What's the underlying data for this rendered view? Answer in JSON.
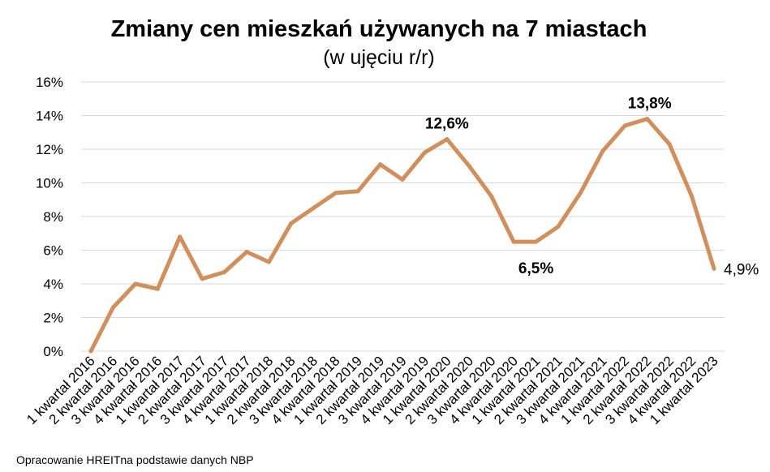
{
  "chart_data": {
    "type": "line",
    "title": "Zmiany cen mieszkań używanych na 7 miastach",
    "subtitle": "(w ujęciu r/r)",
    "xlabel": "",
    "ylabel": "",
    "ylim": [
      0,
      16
    ],
    "yticks": [
      "0%",
      "2%",
      "4%",
      "6%",
      "8%",
      "10%",
      "12%",
      "14%",
      "16%"
    ],
    "ytick_values": [
      0,
      2,
      4,
      6,
      8,
      10,
      12,
      14,
      16
    ],
    "grid": true,
    "line_color": "#d08f5c",
    "categories": [
      "1 kwartał 2016",
      "2 kwartał 2016",
      "3 kwartał 2016",
      "4 kwartał 2016",
      "1 kwartał 2017",
      "2 kwartał 2017",
      "3 kwartał 2017",
      "4 kwartał 2017",
      "1 kwartał 2018",
      "2 kwartał 2018",
      "3 kwartał 2018",
      "4 kwartał 2018",
      "1 kwartał 2019",
      "2 kwartał 2019",
      "3 kwartał 2019",
      "4 kwartał 2019",
      "1 kwartał 2020",
      "2 kwartał 2020",
      "3 kwartał 2020",
      "4 kwartał 2020",
      "1 kwartał 2021",
      "2 kwartał 2021",
      "3 kwartał 2021",
      "4 kwartał 2021",
      "1 kwartał 2022",
      "2 kwartał 2022",
      "3 kwartał 2022",
      "4 kwartał 2022",
      "1 kwartał 2023"
    ],
    "series": [
      {
        "values": [
          0.0,
          2.6,
          4.0,
          3.7,
          6.8,
          4.3,
          4.7,
          5.9,
          5.3,
          7.6,
          8.5,
          9.4,
          9.5,
          11.1,
          10.2,
          11.8,
          12.6,
          11.0,
          9.2,
          6.5,
          6.5,
          7.4,
          9.4,
          11.9,
          13.4,
          13.8,
          12.3,
          9.2,
          4.9
        ]
      }
    ],
    "annotations": [
      {
        "text": "12,6%",
        "index": 16,
        "bold": true
      },
      {
        "text": "6,5%",
        "index": 20,
        "bold": true
      },
      {
        "text": "13,8%",
        "index": 25,
        "bold": true
      },
      {
        "text": "4,9%",
        "index": 28,
        "bold": false
      }
    ]
  },
  "source_note": "Opracowanie HREITna podstawie danych NBP"
}
